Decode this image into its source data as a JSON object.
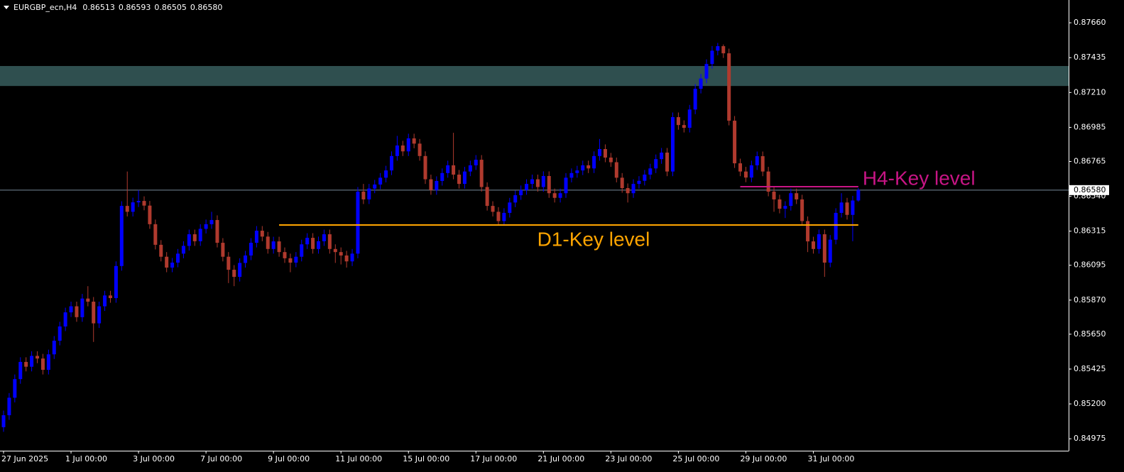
{
  "chart_data": {
    "type": "candlestick",
    "header": {
      "symbol": "EURGBP_ecn,H4",
      "prices": [
        "0.86513",
        "0.86593",
        "0.86505",
        "0.86580"
      ]
    },
    "up_color": "#0000ff",
    "down_color": "#b03a2e",
    "ylim": [
      0.84898,
      0.87807
    ],
    "yticks": [
      {
        "value": 0.8766,
        "label": "0.87660"
      },
      {
        "value": 0.87435,
        "label": "0.87435"
      },
      {
        "value": 0.8721,
        "label": "0.87210"
      },
      {
        "value": 0.86985,
        "label": "0.86985"
      },
      {
        "value": 0.86765,
        "label": "0.86765"
      },
      {
        "value": 0.8654,
        "label": "0.86540"
      },
      {
        "value": 0.86315,
        "label": "0.86315"
      },
      {
        "value": 0.86095,
        "label": "0.86095"
      },
      {
        "value": 0.8587,
        "label": "0.85870"
      },
      {
        "value": 0.8565,
        "label": "0.85650"
      },
      {
        "value": 0.85425,
        "label": "0.85425"
      },
      {
        "value": 0.852,
        "label": "0.85200"
      },
      {
        "value": 0.84975,
        "label": "0.84975"
      }
    ],
    "last_price": {
      "value": 0.8658,
      "label": "0.86580",
      "color": "#778899"
    },
    "zones": [
      {
        "from": 0.87252,
        "to": 0.87381,
        "color": "#2f4f4f"
      }
    ],
    "levels": [
      {
        "label": "D1-Key level",
        "value": 0.86355,
        "from": 49,
        "to": 152,
        "color": "#ffa500"
      },
      {
        "label": "H4-Key level",
        "value": 0.86602,
        "from": 131,
        "to": 152,
        "color": "#c71585"
      }
    ],
    "categories": [
      "27 Jun 2025",
      null,
      null,
      null,
      null,
      null,
      null,
      null,
      null,
      null,
      null,
      null,
      "1 Jul 00:00",
      null,
      null,
      null,
      null,
      null,
      null,
      null,
      null,
      null,
      null,
      null,
      "3 Jul 00:00",
      null,
      null,
      null,
      null,
      null,
      null,
      null,
      null,
      null,
      null,
      null,
      "7 Jul 00:00",
      null,
      null,
      null,
      null,
      null,
      null,
      null,
      null,
      null,
      null,
      null,
      "9 Jul 00:00",
      null,
      null,
      null,
      null,
      null,
      null,
      null,
      null,
      null,
      null,
      null,
      "11 Jul 00:00",
      null,
      null,
      null,
      null,
      null,
      null,
      null,
      null,
      null,
      null,
      null,
      "15 Jul 00:00",
      null,
      null,
      null,
      null,
      null,
      null,
      null,
      null,
      null,
      null,
      null,
      "17 Jul 00:00",
      null,
      null,
      null,
      null,
      null,
      null,
      null,
      null,
      null,
      null,
      null,
      "21 Jul 00:00",
      null,
      null,
      null,
      null,
      null,
      null,
      null,
      null,
      null,
      null,
      null,
      "23 Jul 00:00",
      null,
      null,
      null,
      null,
      null,
      null,
      null,
      null,
      null,
      null,
      null,
      "25 Jul 00:00",
      null,
      null,
      null,
      null,
      null,
      null,
      null,
      null,
      null,
      null,
      null,
      "29 Jul 00:00",
      null,
      null,
      null,
      null,
      null,
      null,
      null,
      null,
      null,
      null,
      null,
      "31 Jul 00:00",
      null,
      null,
      null,
      null,
      null,
      null,
      null,
      null
    ],
    "ohlc": [
      [
        0.8505,
        0.85157,
        0.8502,
        0.85127
      ],
      [
        0.85127,
        0.8527,
        0.85097,
        0.8524
      ],
      [
        0.8524,
        0.8539,
        0.8521,
        0.8536
      ],
      [
        0.8536,
        0.85501,
        0.8533,
        0.85471
      ],
      [
        0.85471,
        0.85501,
        0.8541,
        0.8544
      ],
      [
        0.8544,
        0.8554,
        0.8541,
        0.8551
      ],
      [
        0.8551,
        0.8554,
        0.85463,
        0.85493
      ],
      [
        0.85493,
        0.85523,
        0.8539,
        0.8542
      ],
      [
        0.8542,
        0.8555,
        0.8539,
        0.8552
      ],
      [
        0.8552,
        0.85638,
        0.8549,
        0.85608
      ],
      [
        0.85608,
        0.8573,
        0.85578,
        0.857
      ],
      [
        0.857,
        0.85821,
        0.8567,
        0.85791
      ],
      [
        0.85791,
        0.8586,
        0.85761,
        0.8583
      ],
      [
        0.8583,
        0.8586,
        0.8573,
        0.8576
      ],
      [
        0.8576,
        0.8591,
        0.8573,
        0.8588
      ],
      [
        0.8588,
        0.8596,
        0.8583,
        0.8586
      ],
      [
        0.8586,
        0.8589,
        0.856,
        0.8572
      ],
      [
        0.8572,
        0.8586,
        0.8569,
        0.8583
      ],
      [
        0.8583,
        0.8593,
        0.858,
        0.859
      ],
      [
        0.859,
        0.8593,
        0.85853,
        0.85883
      ],
      [
        0.85883,
        0.8612,
        0.85853,
        0.8609
      ],
      [
        0.8609,
        0.86508,
        0.8606,
        0.86478
      ],
      [
        0.86478,
        0.867,
        0.8641,
        0.8644
      ],
      [
        0.8644,
        0.86531,
        0.8641,
        0.86501
      ],
      [
        0.86501,
        0.8658,
        0.86471,
        0.8651
      ],
      [
        0.8651,
        0.8654,
        0.8645,
        0.8648
      ],
      [
        0.8648,
        0.8651,
        0.8633,
        0.8636
      ],
      [
        0.8636,
        0.8639,
        0.86197,
        0.86227
      ],
      [
        0.86227,
        0.86257,
        0.8612,
        0.8615
      ],
      [
        0.8615,
        0.8618,
        0.8605,
        0.8608
      ],
      [
        0.8608,
        0.86142,
        0.8605,
        0.86112
      ],
      [
        0.86112,
        0.862,
        0.86082,
        0.8617
      ],
      [
        0.8617,
        0.8625,
        0.8614,
        0.8622
      ],
      [
        0.8622,
        0.86325,
        0.8619,
        0.86295
      ],
      [
        0.86295,
        0.86325,
        0.8622,
        0.8625
      ],
      [
        0.8625,
        0.8636,
        0.8622,
        0.8633
      ],
      [
        0.8633,
        0.8639,
        0.863,
        0.8636
      ],
      [
        0.8636,
        0.8644,
        0.8633,
        0.86387
      ],
      [
        0.86387,
        0.86417,
        0.8621,
        0.8624
      ],
      [
        0.8624,
        0.8627,
        0.8612,
        0.8615
      ],
      [
        0.8615,
        0.8618,
        0.8598,
        0.86066
      ],
      [
        0.86066,
        0.86096,
        0.8596,
        0.8602
      ],
      [
        0.8602,
        0.8614,
        0.8599,
        0.8611
      ],
      [
        0.8611,
        0.86188,
        0.8608,
        0.86158
      ],
      [
        0.86158,
        0.8627,
        0.86128,
        0.8624
      ],
      [
        0.8624,
        0.86348,
        0.8621,
        0.86318
      ],
      [
        0.86318,
        0.86348,
        0.8625,
        0.8628
      ],
      [
        0.8628,
        0.8631,
        0.8617,
        0.862
      ],
      [
        0.862,
        0.86279,
        0.8617,
        0.86249
      ],
      [
        0.86249,
        0.86279,
        0.8615,
        0.8618
      ],
      [
        0.8618,
        0.8621,
        0.8611,
        0.8614
      ],
      [
        0.8614,
        0.8617,
        0.8605,
        0.86112
      ],
      [
        0.86112,
        0.8618,
        0.86082,
        0.8615
      ],
      [
        0.8615,
        0.8626,
        0.8612,
        0.8623
      ],
      [
        0.8623,
        0.86302,
        0.862,
        0.86272
      ],
      [
        0.86272,
        0.86302,
        0.8617,
        0.862
      ],
      [
        0.862,
        0.8628,
        0.8617,
        0.8625
      ],
      [
        0.8625,
        0.86325,
        0.8622,
        0.86295
      ],
      [
        0.86295,
        0.86325,
        0.8617,
        0.862
      ],
      [
        0.862,
        0.8623,
        0.8611,
        0.8618
      ],
      [
        0.8618,
        0.8621,
        0.861,
        0.86158
      ],
      [
        0.86158,
        0.86188,
        0.8608,
        0.8612
      ],
      [
        0.8612,
        0.862,
        0.8609,
        0.8617
      ],
      [
        0.8617,
        0.866,
        0.8614,
        0.8657
      ],
      [
        0.8657,
        0.8662,
        0.8649,
        0.8652
      ],
      [
        0.8652,
        0.8662,
        0.8649,
        0.8659
      ],
      [
        0.8659,
        0.86646,
        0.8656,
        0.86616
      ],
      [
        0.86616,
        0.8669,
        0.86586,
        0.8666
      ],
      [
        0.8666,
        0.86737,
        0.8663,
        0.86707
      ],
      [
        0.86707,
        0.8683,
        0.86677,
        0.868
      ],
      [
        0.868,
        0.8693,
        0.8677,
        0.86868
      ],
      [
        0.86868,
        0.86898,
        0.868,
        0.8683
      ],
      [
        0.8683,
        0.86944,
        0.868,
        0.86914
      ],
      [
        0.86914,
        0.86944,
        0.8685,
        0.8688
      ],
      [
        0.8688,
        0.8691,
        0.8677,
        0.868
      ],
      [
        0.868,
        0.8683,
        0.8662,
        0.8665
      ],
      [
        0.8665,
        0.8668,
        0.8655,
        0.8658
      ],
      [
        0.8658,
        0.86669,
        0.8655,
        0.86639
      ],
      [
        0.86639,
        0.8672,
        0.86609,
        0.8669
      ],
      [
        0.8669,
        0.8677,
        0.8666,
        0.8674
      ],
      [
        0.8674,
        0.8695,
        0.8665,
        0.8668
      ],
      [
        0.8668,
        0.8671,
        0.8659,
        0.8662
      ],
      [
        0.8662,
        0.8673,
        0.8659,
        0.867
      ],
      [
        0.867,
        0.8677,
        0.8667,
        0.8674
      ],
      [
        0.8674,
        0.86806,
        0.8671,
        0.86776
      ],
      [
        0.86776,
        0.86806,
        0.8657,
        0.866
      ],
      [
        0.866,
        0.8663,
        0.86448,
        0.86478
      ],
      [
        0.86478,
        0.86508,
        0.8641,
        0.8644
      ],
      [
        0.8644,
        0.8647,
        0.8635,
        0.8638
      ],
      [
        0.8638,
        0.86463,
        0.8635,
        0.86433
      ],
      [
        0.86433,
        0.8653,
        0.86403,
        0.865
      ],
      [
        0.865,
        0.86577,
        0.8647,
        0.86547
      ],
      [
        0.86547,
        0.8661,
        0.86517,
        0.8658
      ],
      [
        0.8658,
        0.8665,
        0.8655,
        0.8662
      ],
      [
        0.8662,
        0.8668,
        0.8659,
        0.8665
      ],
      [
        0.8665,
        0.8668,
        0.8657,
        0.866
      ],
      [
        0.866,
        0.86701,
        0.8657,
        0.86671
      ],
      [
        0.86671,
        0.86701,
        0.8653,
        0.8656
      ],
      [
        0.8656,
        0.8659,
        0.865,
        0.8653
      ],
      [
        0.8653,
        0.8659,
        0.865,
        0.8656
      ],
      [
        0.8656,
        0.8669,
        0.8653,
        0.8666
      ],
      [
        0.8666,
        0.8672,
        0.8663,
        0.8669
      ],
      [
        0.8669,
        0.86737,
        0.8666,
        0.86707
      ],
      [
        0.86707,
        0.8677,
        0.86677,
        0.8674
      ],
      [
        0.8674,
        0.8677,
        0.8669,
        0.8672
      ],
      [
        0.8672,
        0.8683,
        0.8669,
        0.868
      ],
      [
        0.868,
        0.8691,
        0.8677,
        0.86845
      ],
      [
        0.86845,
        0.86875,
        0.8676,
        0.8679
      ],
      [
        0.8679,
        0.8682,
        0.8673,
        0.8676
      ],
      [
        0.8676,
        0.8679,
        0.8663,
        0.8666
      ],
      [
        0.8666,
        0.8669,
        0.86563,
        0.86593
      ],
      [
        0.86593,
        0.86623,
        0.865,
        0.8656
      ],
      [
        0.8656,
        0.8665,
        0.8653,
        0.8662
      ],
      [
        0.8662,
        0.8667,
        0.8659,
        0.8664
      ],
      [
        0.8664,
        0.8671,
        0.8661,
        0.8668
      ],
      [
        0.8668,
        0.8675,
        0.8665,
        0.8672
      ],
      [
        0.8672,
        0.8681,
        0.8669,
        0.8678
      ],
      [
        0.8678,
        0.86852,
        0.8675,
        0.86822
      ],
      [
        0.86822,
        0.86852,
        0.8667,
        0.867
      ],
      [
        0.867,
        0.87081,
        0.8667,
        0.87051
      ],
      [
        0.87051,
        0.87081,
        0.8697,
        0.87
      ],
      [
        0.87,
        0.8703,
        0.86952,
        0.86982
      ],
      [
        0.86982,
        0.8713,
        0.86952,
        0.871
      ],
      [
        0.871,
        0.87264,
        0.8707,
        0.87234
      ],
      [
        0.87234,
        0.8733,
        0.87204,
        0.873
      ],
      [
        0.873,
        0.87424,
        0.8727,
        0.87394
      ],
      [
        0.87394,
        0.8751,
        0.87364,
        0.8748
      ],
      [
        0.8748,
        0.8753,
        0.8745,
        0.87509
      ],
      [
        0.87509,
        0.8752,
        0.87433,
        0.87463
      ],
      [
        0.87463,
        0.87493,
        0.86998,
        0.87028
      ],
      [
        0.87028,
        0.87058,
        0.86723,
        0.86753
      ],
      [
        0.86753,
        0.86783,
        0.8667,
        0.867
      ],
      [
        0.867,
        0.8673,
        0.86631,
        0.86661
      ],
      [
        0.86661,
        0.8677,
        0.86631,
        0.8674
      ],
      [
        0.8674,
        0.86829,
        0.8671,
        0.86799
      ],
      [
        0.86799,
        0.86829,
        0.8667,
        0.867
      ],
      [
        0.867,
        0.8673,
        0.8654,
        0.8657
      ],
      [
        0.8657,
        0.866,
        0.8644,
        0.8652
      ],
      [
        0.8652,
        0.8655,
        0.8643,
        0.8646
      ],
      [
        0.8646,
        0.86508,
        0.864,
        0.86478
      ],
      [
        0.86478,
        0.8659,
        0.86448,
        0.8656
      ],
      [
        0.8656,
        0.8659,
        0.8649,
        0.8652
      ],
      [
        0.8652,
        0.8655,
        0.8635,
        0.8638
      ],
      [
        0.8638,
        0.8641,
        0.8618,
        0.86249
      ],
      [
        0.86249,
        0.86279,
        0.8617,
        0.862
      ],
      [
        0.862,
        0.86325,
        0.8617,
        0.86295
      ],
      [
        0.86295,
        0.86325,
        0.8602,
        0.86112
      ],
      [
        0.86112,
        0.8629,
        0.86082,
        0.8626
      ],
      [
        0.8626,
        0.86463,
        0.8623,
        0.86433
      ],
      [
        0.86433,
        0.8656,
        0.86403,
        0.865
      ],
      [
        0.865,
        0.8653,
        0.8639,
        0.8642
      ],
      [
        0.8642,
        0.86543,
        0.8625,
        0.86513
      ],
      [
        0.86513,
        0.86593,
        0.86505,
        0.8658
      ]
    ]
  }
}
